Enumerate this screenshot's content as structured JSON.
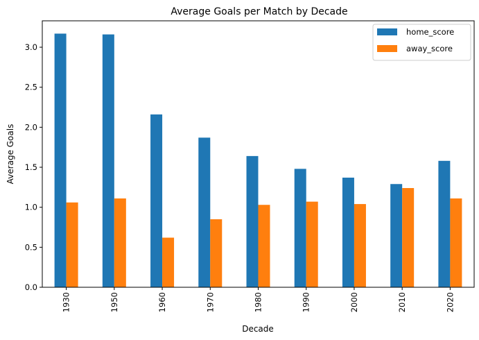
{
  "chart_data": {
    "type": "bar",
    "title": "Average Goals per Match by Decade",
    "xlabel": "Decade",
    "ylabel": "Average Goals",
    "categories": [
      "1930",
      "1950",
      "1960",
      "1970",
      "1980",
      "1990",
      "2000",
      "2010",
      "2020"
    ],
    "series": [
      {
        "name": "home_score",
        "color": "#1f77b4",
        "values": [
          3.17,
          3.16,
          2.16,
          1.87,
          1.64,
          1.48,
          1.37,
          1.29,
          1.58
        ]
      },
      {
        "name": "away_score",
        "color": "#ff7f0e",
        "values": [
          1.06,
          1.11,
          0.62,
          0.85,
          1.03,
          1.07,
          1.04,
          1.24,
          1.11
        ]
      }
    ],
    "ylim": [
      0,
      3.33
    ],
    "yticks": [
      "0.0",
      "0.5",
      "1.0",
      "1.5",
      "2.0",
      "2.5",
      "3.0"
    ],
    "grid": false,
    "legend_position": "top-right"
  }
}
